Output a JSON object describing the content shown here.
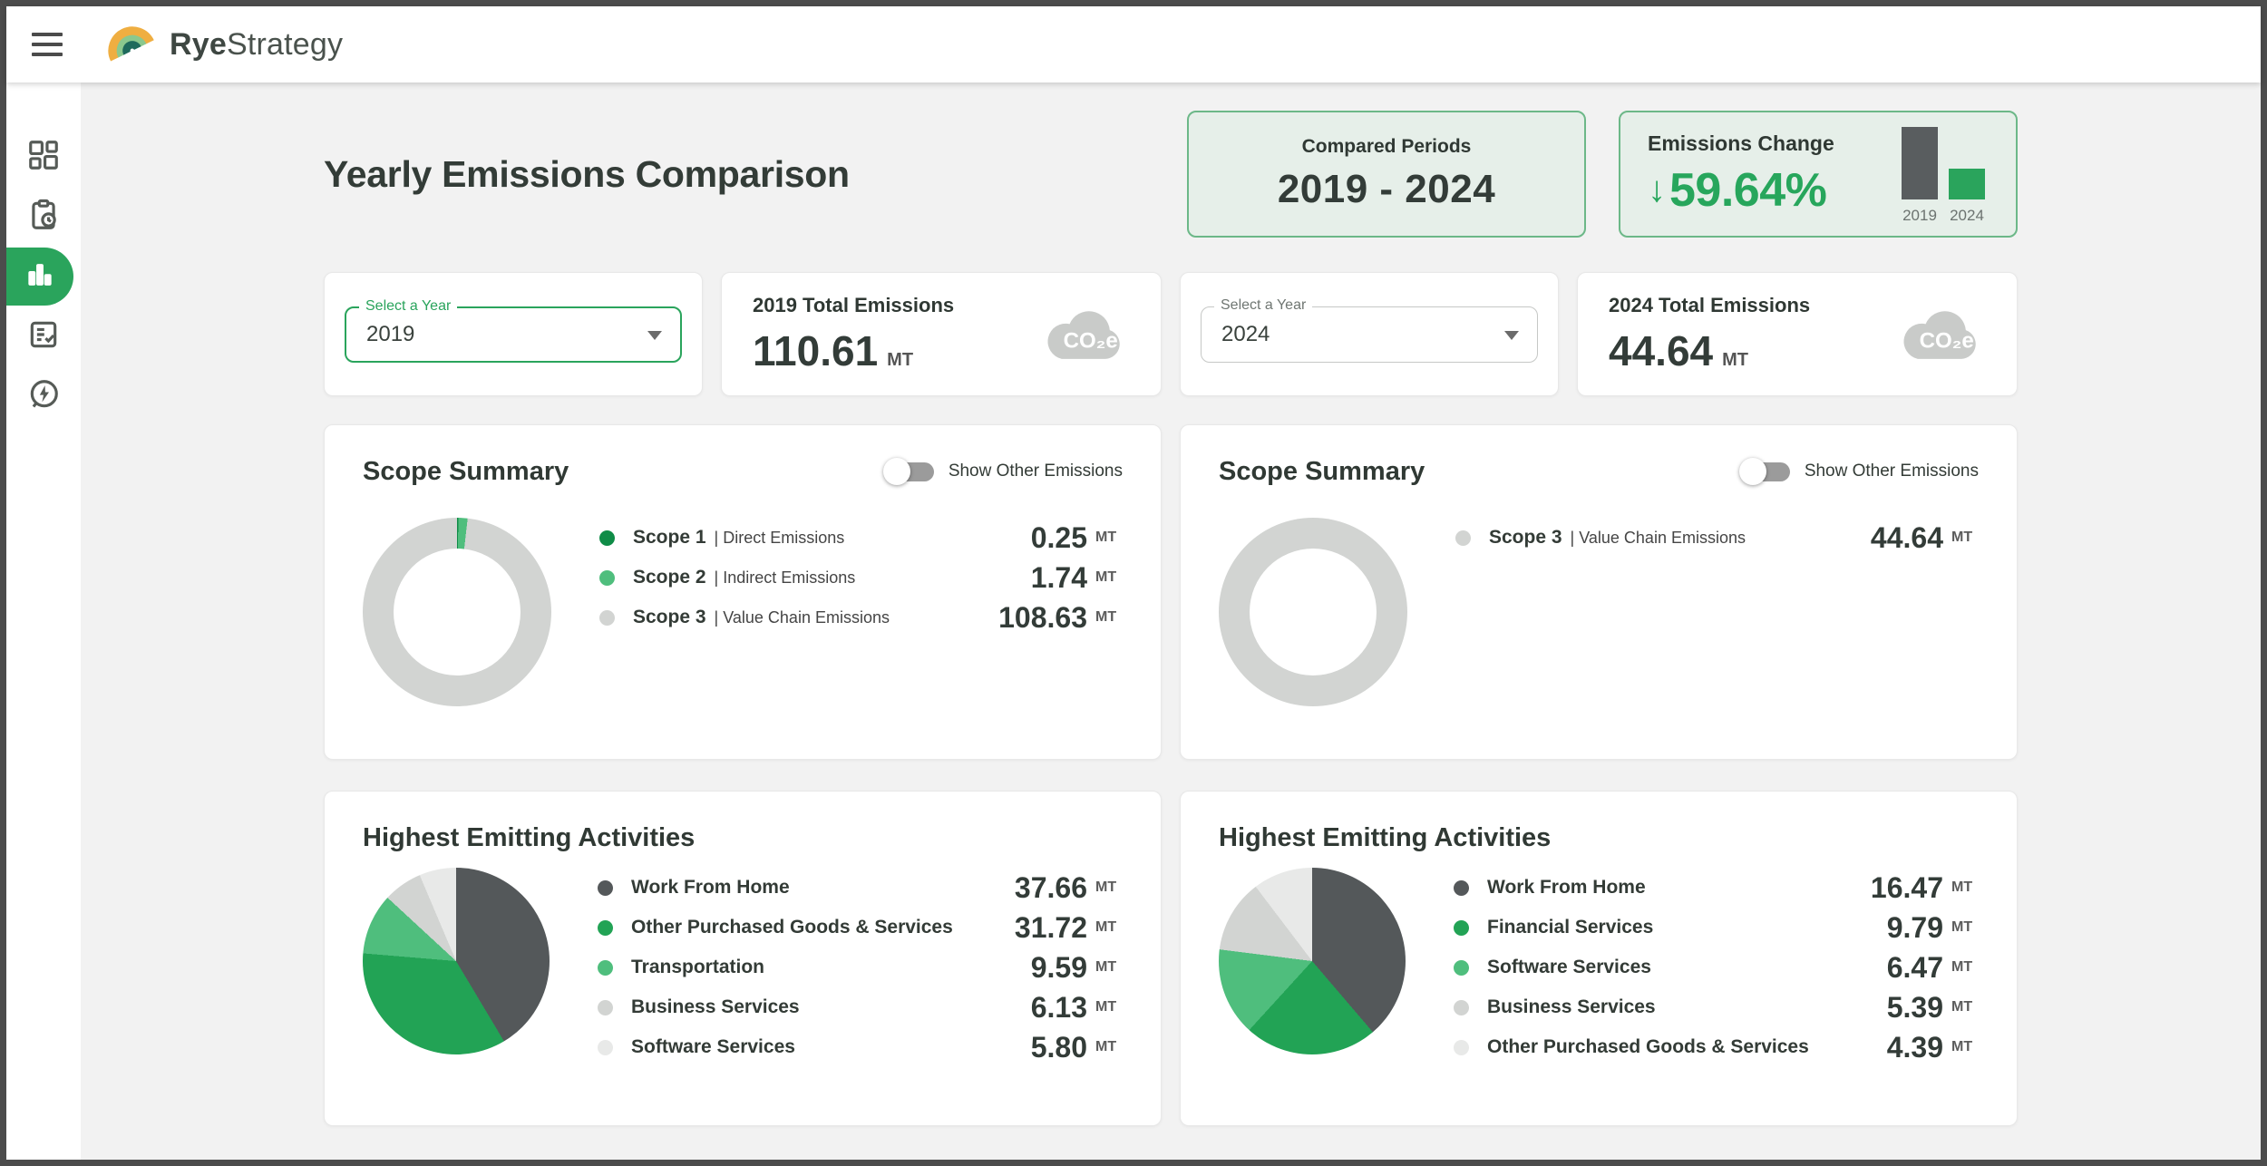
{
  "colors": {
    "accent_green": "#2aa45c",
    "dark_green": "#0f8c47",
    "light_green": "#4fbe7d",
    "slice_green": "#22a355",
    "slice_dark_gray": "#54585a",
    "slice_light_gray": "#d2d4d2",
    "slice_lighter_gray": "#e8e9e8",
    "tint_card_bg": "#e6efe9",
    "tint_card_border": "#6cb888"
  },
  "header": {
    "brand_bold": "Rye",
    "brand_light": "Strategy",
    "menu_icon": "hamburger-icon",
    "logo_icon": "ryestrategy-swoosh-logo"
  },
  "sidebar": {
    "items": [
      {
        "icon": "dashboard-icon",
        "active": false
      },
      {
        "icon": "report-clock-icon",
        "active": false
      },
      {
        "icon": "bar-chart-icon",
        "active": true
      },
      {
        "icon": "checklist-icon",
        "active": false
      },
      {
        "icon": "energy-leaf-icon",
        "active": false
      }
    ]
  },
  "page_title": "Yearly Emissions Comparison",
  "compared_periods": {
    "label": "Compared Periods",
    "value": "2019 - 2024"
  },
  "emissions_change": {
    "label": "Emissions Change",
    "arrow": "↓",
    "value": "59.64%",
    "minibar": {
      "categories": [
        "2019",
        "2024"
      ],
      "values": [
        110.61,
        44.64
      ],
      "colors": [
        "#595d5f",
        "#2aa45c"
      ]
    }
  },
  "year_selectors": [
    {
      "label": "Select a Year",
      "value": "2019",
      "focused": true
    },
    {
      "label": "Select a Year",
      "value": "2024",
      "focused": false
    }
  ],
  "total_cards": [
    {
      "label": "2019 Total Emissions",
      "value": "110.61",
      "unit": "MT",
      "icon": "co2e-cloud-icon",
      "icon_text": "CO₂e"
    },
    {
      "label": "2024 Total Emissions",
      "value": "44.64",
      "unit": "MT",
      "icon": "co2e-cloud-icon",
      "icon_text": "CO₂e"
    }
  ],
  "scope_cards": [
    {
      "title": "Scope Summary",
      "toggle_label": "Show Other Emissions",
      "toggle_on": false,
      "legend": [
        {
          "name": "Scope 1",
          "desc": "| Direct Emissions",
          "value": "0.25",
          "unit": "MT",
          "color": "#0f8c47"
        },
        {
          "name": "Scope 2",
          "desc": "| Indirect Emissions",
          "value": "1.74",
          "unit": "MT",
          "color": "#4fbe7d"
        },
        {
          "name": "Scope 3",
          "desc": "| Value Chain Emissions",
          "value": "108.63",
          "unit": "MT",
          "color": "#d2d4d2"
        }
      ]
    },
    {
      "title": "Scope Summary",
      "toggle_label": "Show Other Emissions",
      "toggle_on": false,
      "legend": [
        {
          "name": "Scope 3",
          "desc": "| Value Chain Emissions",
          "value": "44.64",
          "unit": "MT",
          "color": "#d2d4d2"
        }
      ]
    }
  ],
  "activity_cards": [
    {
      "title": "Highest Emitting Activities",
      "legend": [
        {
          "name": "Work From Home",
          "value": "37.66",
          "unit": "MT",
          "color": "#54585a"
        },
        {
          "name": "Other Purchased Goods & Services",
          "value": "31.72",
          "unit": "MT",
          "color": "#22a355"
        },
        {
          "name": "Transportation",
          "value": "9.59",
          "unit": "MT",
          "color": "#4fbe7d"
        },
        {
          "name": "Business Services",
          "value": "6.13",
          "unit": "MT",
          "color": "#d2d4d2"
        },
        {
          "name": "Software Services",
          "value": "5.80",
          "unit": "MT",
          "color": "#e8e9e8"
        }
      ]
    },
    {
      "title": "Highest Emitting Activities",
      "legend": [
        {
          "name": "Work From Home",
          "value": "16.47",
          "unit": "MT",
          "color": "#54585a"
        },
        {
          "name": "Financial Services",
          "value": "9.79",
          "unit": "MT",
          "color": "#22a355"
        },
        {
          "name": "Software Services",
          "value": "6.47",
          "unit": "MT",
          "color": "#4fbe7d"
        },
        {
          "name": "Business Services",
          "value": "5.39",
          "unit": "MT",
          "color": "#d2d4d2"
        },
        {
          "name": "Other Purchased Goods & Services",
          "value": "4.39",
          "unit": "MT",
          "color": "#e8e9e8"
        }
      ]
    }
  ],
  "chart_data": [
    {
      "type": "pie",
      "title": "Scope Summary 2019 (donut)",
      "labels": [
        "Scope 1 | Direct Emissions",
        "Scope 2 | Indirect Emissions",
        "Scope 3 | Value Chain Emissions"
      ],
      "values": [
        0.25,
        1.74,
        108.63
      ],
      "unit": "MT",
      "legend_position": "right"
    },
    {
      "type": "pie",
      "title": "Scope Summary 2024 (donut)",
      "labels": [
        "Scope 3 | Value Chain Emissions"
      ],
      "values": [
        44.64
      ],
      "unit": "MT",
      "legend_position": "right"
    },
    {
      "type": "pie",
      "title": "Highest Emitting Activities 2019",
      "labels": [
        "Work From Home",
        "Other Purchased Goods & Services",
        "Transportation",
        "Business Services",
        "Software Services"
      ],
      "values": [
        37.66,
        31.72,
        9.59,
        6.13,
        5.8
      ],
      "unit": "MT",
      "legend_position": "right"
    },
    {
      "type": "pie",
      "title": "Highest Emitting Activities 2024",
      "labels": [
        "Work From Home",
        "Financial Services",
        "Software Services",
        "Business Services",
        "Other Purchased Goods & Services"
      ],
      "values": [
        16.47,
        9.79,
        6.47,
        5.39,
        4.39
      ],
      "unit": "MT",
      "legend_position": "right"
    },
    {
      "type": "bar",
      "title": "Emissions Change mini chart",
      "categories": [
        "2019",
        "2024"
      ],
      "values": [
        110.61,
        44.64
      ],
      "unit": "MT"
    }
  ]
}
